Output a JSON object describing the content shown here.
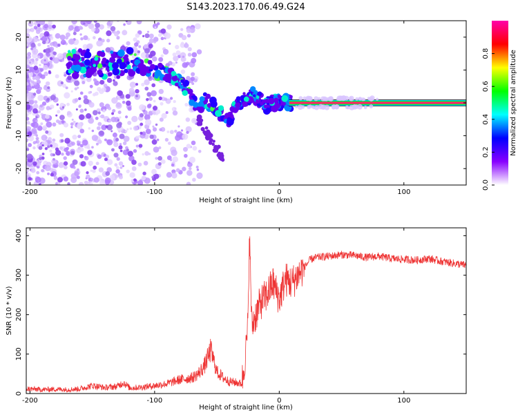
{
  "figure": {
    "title": "S143.2023.170.06.49.G24"
  },
  "chart_data": [
    {
      "type": "heatmap",
      "title": "",
      "xlabel": "Height of straight line (km)",
      "ylabel": "Frequency (Hz)",
      "xlim": [
        -203,
        150
      ],
      "ylim": [
        -25,
        25
      ],
      "xticks": [
        -200,
        -100,
        0,
        100
      ],
      "yticks": [
        -20,
        -10,
        0,
        10,
        20
      ],
      "ridge": {
        "x": [
          -115,
          -100,
          -90,
          -80,
          -75,
          -70,
          -65,
          -60,
          -55,
          -50,
          -45,
          -40,
          -35,
          -30,
          -25,
          -20,
          -15,
          -10,
          -5,
          0,
          5,
          10,
          20,
          50,
          100,
          150
        ],
        "y": [
          12,
          10,
          9,
          7,
          4,
          1,
          -1,
          1,
          0,
          -2,
          -4,
          -5,
          -1,
          0.5,
          1.5,
          2.5,
          0.5,
          -0.5,
          0,
          0.5,
          0,
          0,
          0,
          0,
          0,
          0
        ]
      },
      "colorbar": {
        "label": "Normalized spectral amplitude",
        "range": [
          0,
          1
        ],
        "ticks": [
          0.0,
          0.2,
          0.4,
          0.6,
          0.8
        ],
        "colors": [
          "#ffffff",
          "#8800ff",
          "#0000ff",
          "#00ffff",
          "#00ff00",
          "#ffff00",
          "#ff0000",
          "#ff00aa"
        ]
      }
    },
    {
      "type": "line",
      "title": "",
      "xlabel": "Height of straight line (km)",
      "ylabel": "SNR (10 * v/v)",
      "xlim": [
        -203,
        150
      ],
      "ylim": [
        0,
        420
      ],
      "xticks": [
        -200,
        -100,
        0,
        100
      ],
      "yticks": [
        0,
        100,
        200,
        300,
        400
      ],
      "color": "#ee3333",
      "series": [
        {
          "x": [
            -203,
            -190,
            -180,
            -170,
            -160,
            -150,
            -140,
            -130,
            -125,
            -120,
            -110,
            -100,
            -90,
            -80,
            -70,
            -65,
            -60,
            -55,
            -50,
            -45,
            -40,
            -35,
            -30,
            -27,
            -25,
            -24,
            -22,
            -20,
            -15,
            -10,
            -5,
            0,
            5,
            10,
            15,
            20,
            25,
            30,
            40,
            50,
            60,
            70,
            80,
            90,
            100,
            110,
            120,
            130,
            140,
            150
          ],
          "values": [
            12,
            10,
            11,
            10,
            12,
            20,
            15,
            18,
            28,
            14,
            16,
            20,
            25,
            35,
            40,
            50,
            70,
            110,
            55,
            40,
            30,
            28,
            25,
            100,
            180,
            410,
            170,
            190,
            230,
            250,
            280,
            240,
            290,
            280,
            300,
            320,
            340,
            345,
            348,
            352,
            350,
            345,
            348,
            342,
            340,
            338,
            342,
            335,
            330,
            325
          ]
        }
      ]
    }
  ]
}
